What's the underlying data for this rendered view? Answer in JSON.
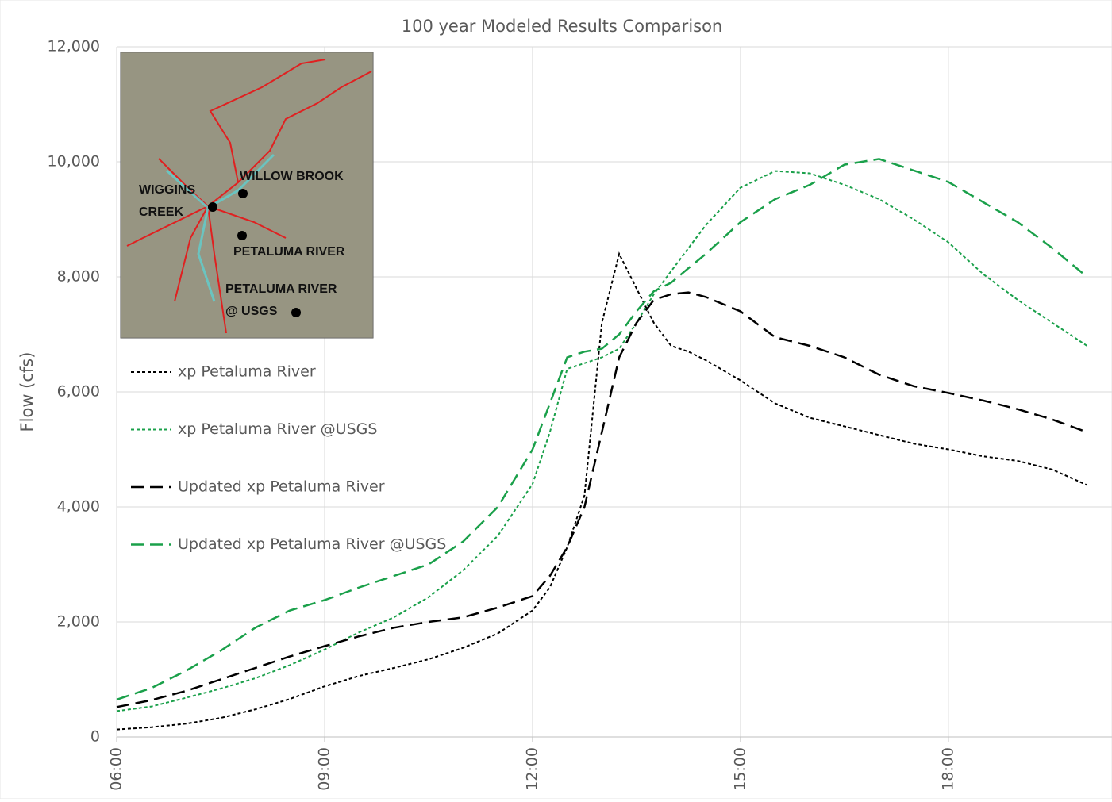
{
  "chart_data": {
    "type": "line",
    "title": "100 year Modeled Results Comparison",
    "y_label": "Flow (cfs)",
    "x": [
      6,
      6.5,
      7,
      7.5,
      8,
      8.5,
      9,
      9.5,
      10,
      10.5,
      11,
      11.5,
      12,
      12.25,
      12.5,
      12.75,
      13,
      13.25,
      13.5,
      13.75,
      14,
      14.25,
      14.5,
      15,
      15.5,
      16,
      16.5,
      17,
      17.5,
      18,
      18.5,
      19,
      19.5,
      20
    ],
    "xlim": [
      6,
      20.36
    ],
    "xticks": [
      {
        "value": 6,
        "label": "06:00"
      },
      {
        "value": 9,
        "label": "09:00"
      },
      {
        "value": 12,
        "label": "12:00"
      },
      {
        "value": 15,
        "label": "15:00"
      },
      {
        "value": 18,
        "label": "18:00"
      }
    ],
    "ylim": [
      0,
      12000
    ],
    "yticks": [
      0,
      {
        "value": 2000,
        "label": "2,000"
      },
      {
        "value": 4000,
        "label": "4,000"
      },
      {
        "value": 6000,
        "label": "6,000"
      },
      {
        "value": 8000,
        "label": "8,000"
      },
      {
        "value": 10000,
        "label": "10,000"
      },
      {
        "value": 12000,
        "label": "12,000"
      }
    ],
    "grid": true,
    "legend": "left",
    "series": [
      {
        "name": "xp Petaluma River",
        "color": "#000000",
        "dash": "short",
        "values": [
          130,
          170,
          230,
          330,
          480,
          660,
          880,
          1060,
          1200,
          1350,
          1550,
          1800,
          2200,
          2600,
          3300,
          4200,
          7200,
          8400,
          7800,
          7200,
          6800,
          6700,
          6550,
          6200,
          5800,
          5550,
          5400,
          5250,
          5100,
          5000,
          4880,
          4800,
          4650,
          4380
        ]
      },
      {
        "name": "xp Petaluma River @USGS",
        "color": "#1aa04a",
        "dash": "short",
        "values": [
          450,
          530,
          680,
          840,
          1020,
          1250,
          1520,
          1820,
          2080,
          2430,
          2900,
          3500,
          4400,
          5300,
          6400,
          6500,
          6600,
          6750,
          7200,
          7700,
          8100,
          8500,
          8900,
          9550,
          9840,
          9800,
          9600,
          9350,
          9000,
          8600,
          8050,
          7600,
          7200,
          6800
        ]
      },
      {
        "name": "Updated xp Petaluma River",
        "color": "#000000",
        "dash": "long",
        "values": [
          520,
          640,
          800,
          1000,
          1200,
          1400,
          1580,
          1750,
          1900,
          2000,
          2080,
          2250,
          2450,
          2800,
          3300,
          4000,
          5300,
          6600,
          7200,
          7600,
          7700,
          7730,
          7650,
          7400,
          6950,
          6800,
          6600,
          6300,
          6100,
          5980,
          5850,
          5700,
          5520,
          5300
        ]
      },
      {
        "name": "Updated xp Petaluma River @USGS",
        "color": "#1aa04a",
        "dash": "long",
        "values": [
          650,
          850,
          1150,
          1500,
          1900,
          2200,
          2380,
          2600,
          2800,
          3000,
          3400,
          4000,
          5000,
          5800,
          6600,
          6700,
          6750,
          7000,
          7400,
          7750,
          7900,
          8150,
          8400,
          8950,
          9350,
          9600,
          9950,
          10050,
          9850,
          9650,
          9300,
          8950,
          8500,
          8000
        ]
      }
    ],
    "inset_labels": [
      "WILLOW BROOK",
      "WIGGINS",
      "CREEK",
      "PETALUMA RIVER",
      "PETALUMA RIVER",
      "@ USGS"
    ]
  }
}
